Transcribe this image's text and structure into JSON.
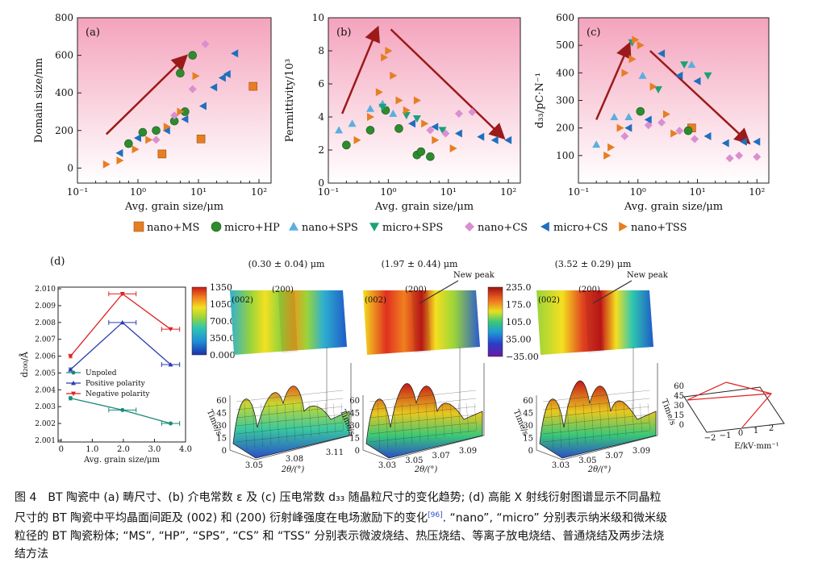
{
  "colors": {
    "ms": "#e67e22",
    "hp": "#2e8b2e",
    "nano_sps": "#5aaee0",
    "micro_sps": "#1aa27a",
    "cs_nano": "#d98fd0",
    "cs_micro": "#1f6fbf",
    "tss": "#e67e22",
    "trend": "#9b1a1a",
    "bg_top": "#f5a8c0",
    "unpoled": "#1a8a7a",
    "positive": "#2a3cb0",
    "negative": "#e02020"
  },
  "panels": [
    {
      "id": "a",
      "label": "(a)",
      "ylabel": "Domain size/nm",
      "xlabel": "Avg. grain size/μm",
      "yticks": [
        "0",
        "200",
        "400",
        "600",
        "800"
      ],
      "ylim": [
        -80,
        800
      ],
      "series": [
        {
          "key": "ms",
          "pts": [
            [
              2.5,
              75
            ],
            [
              11,
              155
            ],
            [
              80,
              435
            ]
          ]
        },
        {
          "key": "hp",
          "pts": [
            [
              0.7,
              130
            ],
            [
              1.2,
              190
            ],
            [
              2,
              200
            ],
            [
              4,
              250
            ],
            [
              6,
              300
            ],
            [
              5,
              505
            ],
            [
              8,
              600
            ]
          ]
        },
        {
          "key": "cs_nano",
          "pts": [
            [
              2,
              150
            ],
            [
              4,
              280
            ],
            [
              8,
              420
            ],
            [
              13,
              660
            ]
          ]
        },
        {
          "key": "cs_micro",
          "pts": [
            [
              0.5,
              80
            ],
            [
              1,
              160
            ],
            [
              3,
              200
            ],
            [
              6,
              260
            ],
            [
              12,
              330
            ],
            [
              18,
              430
            ],
            [
              25,
              480
            ],
            [
              40,
              610
            ],
            [
              30,
              500
            ]
          ]
        },
        {
          "key": "tss",
          "pts": [
            [
              0.3,
              20
            ],
            [
              0.5,
              40
            ],
            [
              0.9,
              100
            ],
            [
              1.5,
              150
            ],
            [
              3,
              220
            ],
            [
              5,
              300
            ],
            [
              9,
              490
            ]
          ]
        }
      ],
      "arrows": [
        [
          [
            0.3,
            180
          ],
          [
            6,
            590
          ]
        ]
      ]
    },
    {
      "id": "b",
      "label": "(b)",
      "ylabel": "Permittivity/10³",
      "xlabel": "Avg. grain size/μm",
      "yticks": [
        "0",
        "2",
        "4",
        "6",
        "8",
        "10"
      ],
      "ylim": [
        0,
        10
      ],
      "series": [
        {
          "key": "hp",
          "pts": [
            [
              0.2,
              2.3
            ],
            [
              0.5,
              3.2
            ],
            [
              0.9,
              4.4
            ],
            [
              1.5,
              3.3
            ],
            [
              3,
              1.7
            ],
            [
              3.5,
              1.9
            ],
            [
              5,
              1.6
            ]
          ]
        },
        {
          "key": "nano_sps",
          "pts": [
            [
              0.15,
              3.2
            ],
            [
              0.25,
              3.6
            ],
            [
              0.5,
              4.5
            ],
            [
              0.8,
              4.8
            ],
            [
              1.2,
              4.2
            ]
          ]
        },
        {
          "key": "micro_sps",
          "pts": [
            [
              0.8,
              4.6
            ],
            [
              2,
              4.1
            ],
            [
              3,
              3.9
            ],
            [
              8,
              3.2
            ]
          ]
        },
        {
          "key": "cs_nano",
          "pts": [
            [
              5,
              3.2
            ],
            [
              9,
              3.0
            ],
            [
              15,
              4.2
            ],
            [
              25,
              4.3
            ]
          ]
        },
        {
          "key": "cs_micro",
          "pts": [
            [
              2.5,
              3.6
            ],
            [
              6,
              3.4
            ],
            [
              15,
              3.0
            ],
            [
              35,
              2.8
            ],
            [
              60,
              2.6
            ],
            [
              100,
              2.6
            ]
          ]
        },
        {
          "key": "tss",
          "pts": [
            [
              0.3,
              2.6
            ],
            [
              0.5,
              4.0
            ],
            [
              0.7,
              5.5
            ],
            [
              0.85,
              7.6
            ],
            [
              1.0,
              8.0
            ],
            [
              1.2,
              6.5
            ],
            [
              1.5,
              5.0
            ],
            [
              2,
              4.4
            ],
            [
              3,
              5.0
            ],
            [
              4,
              3.6
            ],
            [
              6,
              2.6
            ],
            [
              12,
              2.1
            ]
          ]
        }
      ],
      "arrows": [
        [
          [
            0.17,
            4.2
          ],
          [
            0.65,
            9.3
          ]
        ],
        [
          [
            1.1,
            9.3
          ],
          [
            80,
            2.8
          ]
        ]
      ]
    },
    {
      "id": "c",
      "label": "(c)",
      "ylabel": "d₃₃/pC·N⁻¹",
      "xlabel": "Avg. grain size/μm",
      "yticks": [
        "100",
        "200",
        "300",
        "400",
        "500",
        "600"
      ],
      "ylim": [
        0,
        600
      ],
      "series": [
        {
          "key": "ms",
          "pts": [
            [
              8,
              200
            ]
          ]
        },
        {
          "key": "hp",
          "pts": [
            [
              1.1,
              260
            ],
            [
              7,
              190
            ]
          ]
        },
        {
          "key": "nano_sps",
          "pts": [
            [
              0.2,
              140
            ],
            [
              0.4,
              240
            ],
            [
              0.7,
              240
            ],
            [
              1.2,
              390
            ],
            [
              8,
              430
            ]
          ]
        },
        {
          "key": "micro_sps",
          "pts": [
            [
              0.8,
              510
            ],
            [
              2.2,
              340
            ],
            [
              6,
              430
            ],
            [
              15,
              390
            ]
          ]
        },
        {
          "key": "cs_nano",
          "pts": [
            [
              0.6,
              170
            ],
            [
              1.5,
              210
            ],
            [
              2.5,
              220
            ],
            [
              5,
              190
            ],
            [
              9,
              160
            ],
            [
              35,
              90
            ],
            [
              50,
              100
            ],
            [
              100,
              95
            ]
          ]
        },
        {
          "key": "cs_micro",
          "pts": [
            [
              0.7,
              200
            ],
            [
              1.5,
              230
            ],
            [
              2.5,
              470
            ],
            [
              5,
              390
            ],
            [
              10,
              370
            ],
            [
              15,
              170
            ],
            [
              30,
              145
            ],
            [
              60,
              150
            ],
            [
              100,
              150
            ]
          ]
        },
        {
          "key": "tss",
          "pts": [
            [
              0.3,
              100
            ],
            [
              0.35,
              130
            ],
            [
              0.5,
              200
            ],
            [
              0.6,
              400
            ],
            [
              0.8,
              450
            ],
            [
              0.9,
              520
            ],
            [
              1.1,
              500
            ],
            [
              1.8,
              350
            ],
            [
              3,
              250
            ],
            [
              4,
              180
            ]
          ]
        }
      ],
      "arrows": [
        [
          [
            0.2,
            230
          ],
          [
            0.7,
            500
          ]
        ],
        [
          [
            1.6,
            480
          ],
          [
            70,
            150
          ]
        ]
      ]
    }
  ],
  "shared_x": {
    "ticks": [
      "10⁻¹",
      "10⁰",
      "10¹",
      "10²"
    ]
  },
  "legend": [
    {
      "key": "ms",
      "shape": "square",
      "label": "nano+MS"
    },
    {
      "key": "hp",
      "shape": "circle",
      "label": "micro+HP"
    },
    {
      "key": "nano_sps",
      "shape": "triangle-up",
      "label": "nano+SPS"
    },
    {
      "key": "micro_sps",
      "shape": "triangle-down",
      "label": "micro+SPS"
    },
    {
      "key": "cs_nano",
      "shape": "diamond",
      "label": "nano+CS"
    },
    {
      "key": "cs_micro",
      "shape": "triangle-left",
      "label": "micro+CS"
    },
    {
      "key": "tss",
      "shape": "triangle-right",
      "label": "nano+TSS"
    }
  ],
  "panel_d": {
    "label": "(d)",
    "ylabel": "d₂₀₀/Å",
    "xlabel": "Avg. grain size/μm",
    "yticks": [
      "2.001",
      "2.002",
      "2.003",
      "2.004",
      "2.005",
      "2.006",
      "2.007",
      "2.008",
      "2.009",
      "2.010"
    ],
    "xticks": [
      "0",
      "1.0",
      "2.0",
      "3.0",
      "4.0"
    ],
    "ylim": [
      2.001,
      2.01
    ],
    "xlim": [
      -0.1,
      4.0
    ],
    "series": [
      {
        "name": "Unpoled",
        "key": "unpoled",
        "x": [
          0.3,
          1.97,
          3.52
        ],
        "y": [
          2.0035,
          2.0028,
          2.002
        ]
      },
      {
        "name": "Positive polarity",
        "key": "positive",
        "x": [
          0.3,
          1.97,
          3.52
        ],
        "y": [
          2.0052,
          2.008,
          2.0055
        ]
      },
      {
        "name": "Negative polarity",
        "key": "negative",
        "x": [
          0.3,
          1.97,
          3.52
        ],
        "y": [
          2.006,
          2.0097,
          2.0076
        ]
      }
    ],
    "xerr": [
      0.04,
      0.44,
      0.29
    ]
  },
  "maps": [
    {
      "title": "(0.30 ± 0.04) μm",
      "peak_label": "",
      "xt": [
        "3.05",
        "3.08",
        "3.11"
      ]
    },
    {
      "title": "(1.97 ± 0.44) μm",
      "peak_label": "New peak",
      "xt": [
        "3.03",
        "3.05",
        "3.07",
        "3.09"
      ]
    },
    {
      "title": "(3.52 ± 0.29) μm",
      "peak_label": "New peak",
      "xt": [
        "3.03",
        "3.05",
        "3.07",
        "3.09"
      ]
    }
  ],
  "map_labels": {
    "p002": "(002)",
    "p200": "(200)",
    "time": "Time/s",
    "theta": "2θ/(°)",
    "t_ticks": [
      "0",
      "15",
      "30",
      "45",
      "60"
    ]
  },
  "colorbar1": {
    "ticks": [
      "1350",
      "1050",
      "700.0",
      "350.0",
      "0.000"
    ]
  },
  "colorbar2": {
    "ticks": [
      "235.0",
      "175.0",
      "105.0",
      "35.00",
      "−35.00"
    ]
  },
  "efield": {
    "xlabel": "E/kV·mm⁻¹",
    "ylabel": "Time/s",
    "xticks": [
      "−2",
      "−1",
      "0",
      "1",
      "2"
    ],
    "yticks": [
      "0",
      "15",
      "30",
      "45",
      "60"
    ]
  },
  "caption": {
    "line1": "图 4　BT 陶瓷中 (a) 畴尺寸、(b) 介电常数 ε 及 (c) 压电常数 d₃₃ 随晶粒尺寸的变化趋势; (d) 高能 X 射线衍射图谱显示不同晶粒",
    "line2a": "尺寸的 BT 陶瓷中平均晶面间距及 (002) 和 (200) 衍射峰强度在电场激励下的变化",
    "ref": "[96]",
    "line2b": ". “nano”, “micro” 分别表示纳米级和微米级",
    "line3": "粒径的 BT 陶瓷粉体; “MS”, “HP”, “SPS”, “CS” 和 “TSS” 分别表示微波烧结、热压烧结、等离子放电烧结、普通烧结及两步法烧",
    "line4": "结方法"
  }
}
